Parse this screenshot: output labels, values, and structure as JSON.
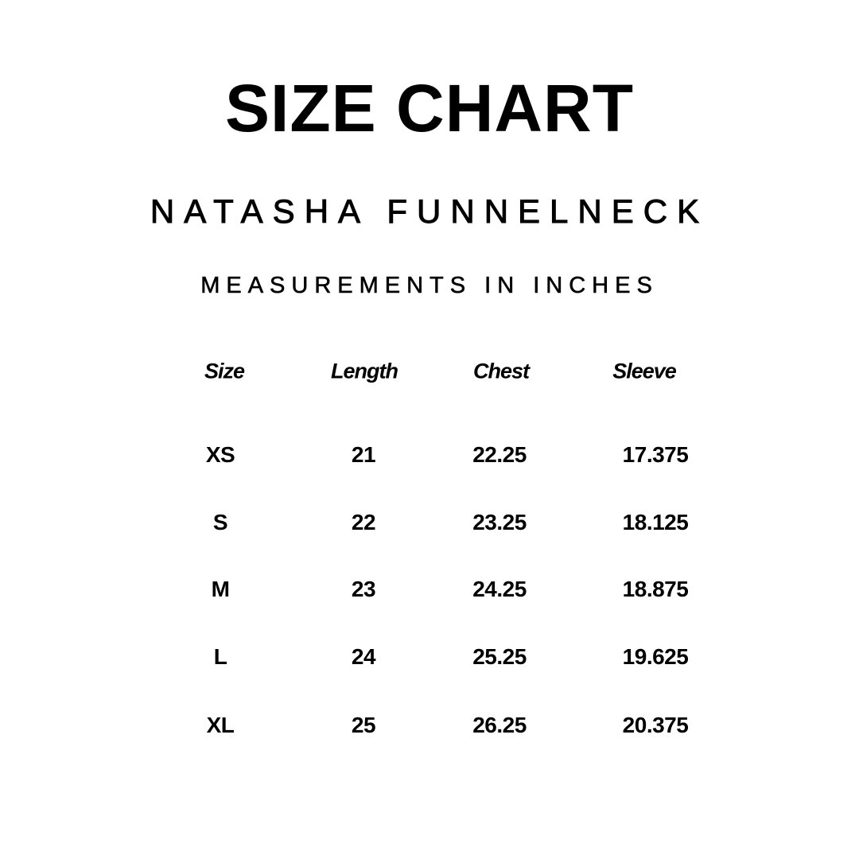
{
  "title": "SIZE CHART",
  "product": "NATASHA FUNNELNECK",
  "units": "MEASUREMENTS IN INCHES",
  "table": {
    "headers": [
      "Size",
      "Length",
      "Chest",
      "Sleeve"
    ],
    "rows": [
      [
        "XS",
        "21",
        "22.25",
        "17.375"
      ],
      [
        "S",
        "22",
        "23.25",
        "18.125"
      ],
      [
        "M",
        "23",
        "24.25",
        "18.875"
      ],
      [
        "L",
        "24",
        "25.25",
        "19.625"
      ],
      [
        "XL",
        "25",
        "26.25",
        "20.375"
      ]
    ]
  }
}
